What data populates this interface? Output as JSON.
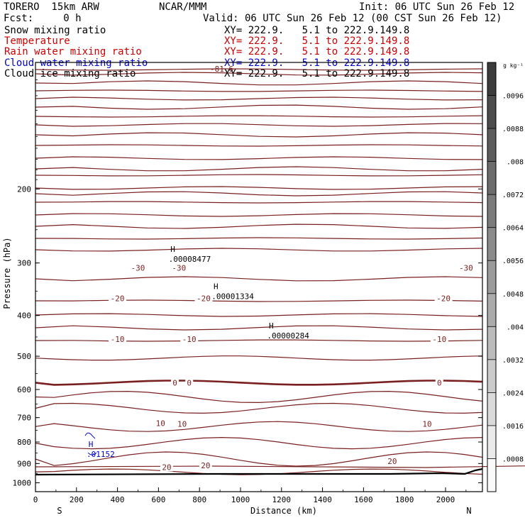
{
  "header": {
    "model": "TORERO  15km ARW",
    "org": "NCAR/MMM",
    "init": "Init: 06 UTC Sun 26 Feb 12",
    "fcst": "Fcst:     0 h",
    "valid": "Valid: 06 UTC Sun 26 Feb 12 (00 CST Sun 26 Feb 12)"
  },
  "fields": [
    {
      "name": "Snow mixing ratio",
      "xy": "XY= 222.9.   5.1 to 222.9.149.8",
      "color": "#000000"
    },
    {
      "name": "Temperature",
      "xy": "XY= 222.9.   5.1 to 222.9.149.8",
      "color": "#cc0000"
    },
    {
      "name": "Rain water mixing ratio",
      "xy": "XY= 222.9.   5.1 to 222.9.149.8",
      "color": "#cc0000"
    },
    {
      "name": "Cloud water mixing ratio",
      "xy": "XY= 222.9.   5.1 to 222.9.149.8",
      "color": "#0000cc"
    },
    {
      "name": "Cloud ice mixing ratio",
      "xy": "XY= 222.9.   5.1 to 222.9.149.8",
      "color": "#000000"
    }
  ],
  "chart_data": {
    "type": "contour",
    "xlabel": "Distance (km)",
    "ylabel": "Pressure (hPa)",
    "xlim": [
      0,
      2180
    ],
    "ylim": [
      1050,
      100
    ],
    "y_scale": "log",
    "x_ticks": [
      0,
      200,
      400,
      600,
      800,
      1000,
      1200,
      1400,
      1600,
      1800,
      2000
    ],
    "y_ticks": [
      200,
      300,
      400,
      500,
      600,
      700,
      800,
      900,
      1000
    ],
    "x_end_labels": {
      "left": "S",
      "right": "N"
    },
    "colorbar": {
      "unit": "g kg⁻¹",
      "ticks": [
        ".0096",
        ".0088",
        ".008",
        ".0072",
        ".0064",
        ".0056",
        ".0048",
        ".004",
        ".0032",
        ".0024",
        ".0016",
        ".0008"
      ]
    },
    "temperature_contours": [
      {
        "level": -30,
        "labels": [
          {
            "text": "-30",
            "x": 500,
            "p": 308
          },
          {
            "text": "-30",
            "x": 700,
            "p": 308
          },
          {
            "text": "-30",
            "x": 2100,
            "p": 308
          }
        ]
      },
      {
        "level": -20,
        "labels": [
          {
            "text": "-20",
            "x": 400,
            "p": 364
          },
          {
            "text": "-20",
            "x": 820,
            "p": 364
          },
          {
            "text": "-20",
            "x": 1990,
            "p": 364
          }
        ]
      },
      {
        "level": -10,
        "labels": [
          {
            "text": "-10",
            "x": 400,
            "p": 455
          },
          {
            "text": "-10",
            "x": 750,
            "p": 455
          },
          {
            "text": "-10",
            "x": 1970,
            "p": 455
          }
        ]
      },
      {
        "level": 0,
        "labels": [
          {
            "text": "0",
            "x": 680,
            "p": 578
          },
          {
            "text": "0",
            "x": 750,
            "p": 578
          },
          {
            "text": "0",
            "x": 1970,
            "p": 578
          }
        ]
      },
      {
        "level": 10,
        "labels": [
          {
            "text": "10",
            "x": 610,
            "p": 722
          },
          {
            "text": "10",
            "x": 715,
            "p": 725
          },
          {
            "text": "10",
            "x": 1910,
            "p": 725
          }
        ]
      },
      {
        "level": 20,
        "labels": [
          {
            "text": "20",
            "x": 640,
            "p": 918
          },
          {
            "text": "20",
            "x": 830,
            "p": 910
          },
          {
            "text": "20",
            "x": 1740,
            "p": 888
          }
        ]
      }
    ],
    "extrema": [
      {
        "symbol": "H",
        "value": ".00008477",
        "x": 670,
        "p": 289,
        "color": "#000000"
      },
      {
        "symbol": "H",
        "value": ".00001334",
        "x": 880,
        "p": 354,
        "color": "#000000"
      },
      {
        "symbol": "H",
        "value": ".00000284",
        "x": 1150,
        "p": 440,
        "color": "#000000"
      },
      {
        "symbol": "H",
        "value": ".01152",
        "x": 270,
        "p": 842,
        "color": "#0000cc"
      }
    ],
    "top_label": "-81.6",
    "grid": false
  }
}
